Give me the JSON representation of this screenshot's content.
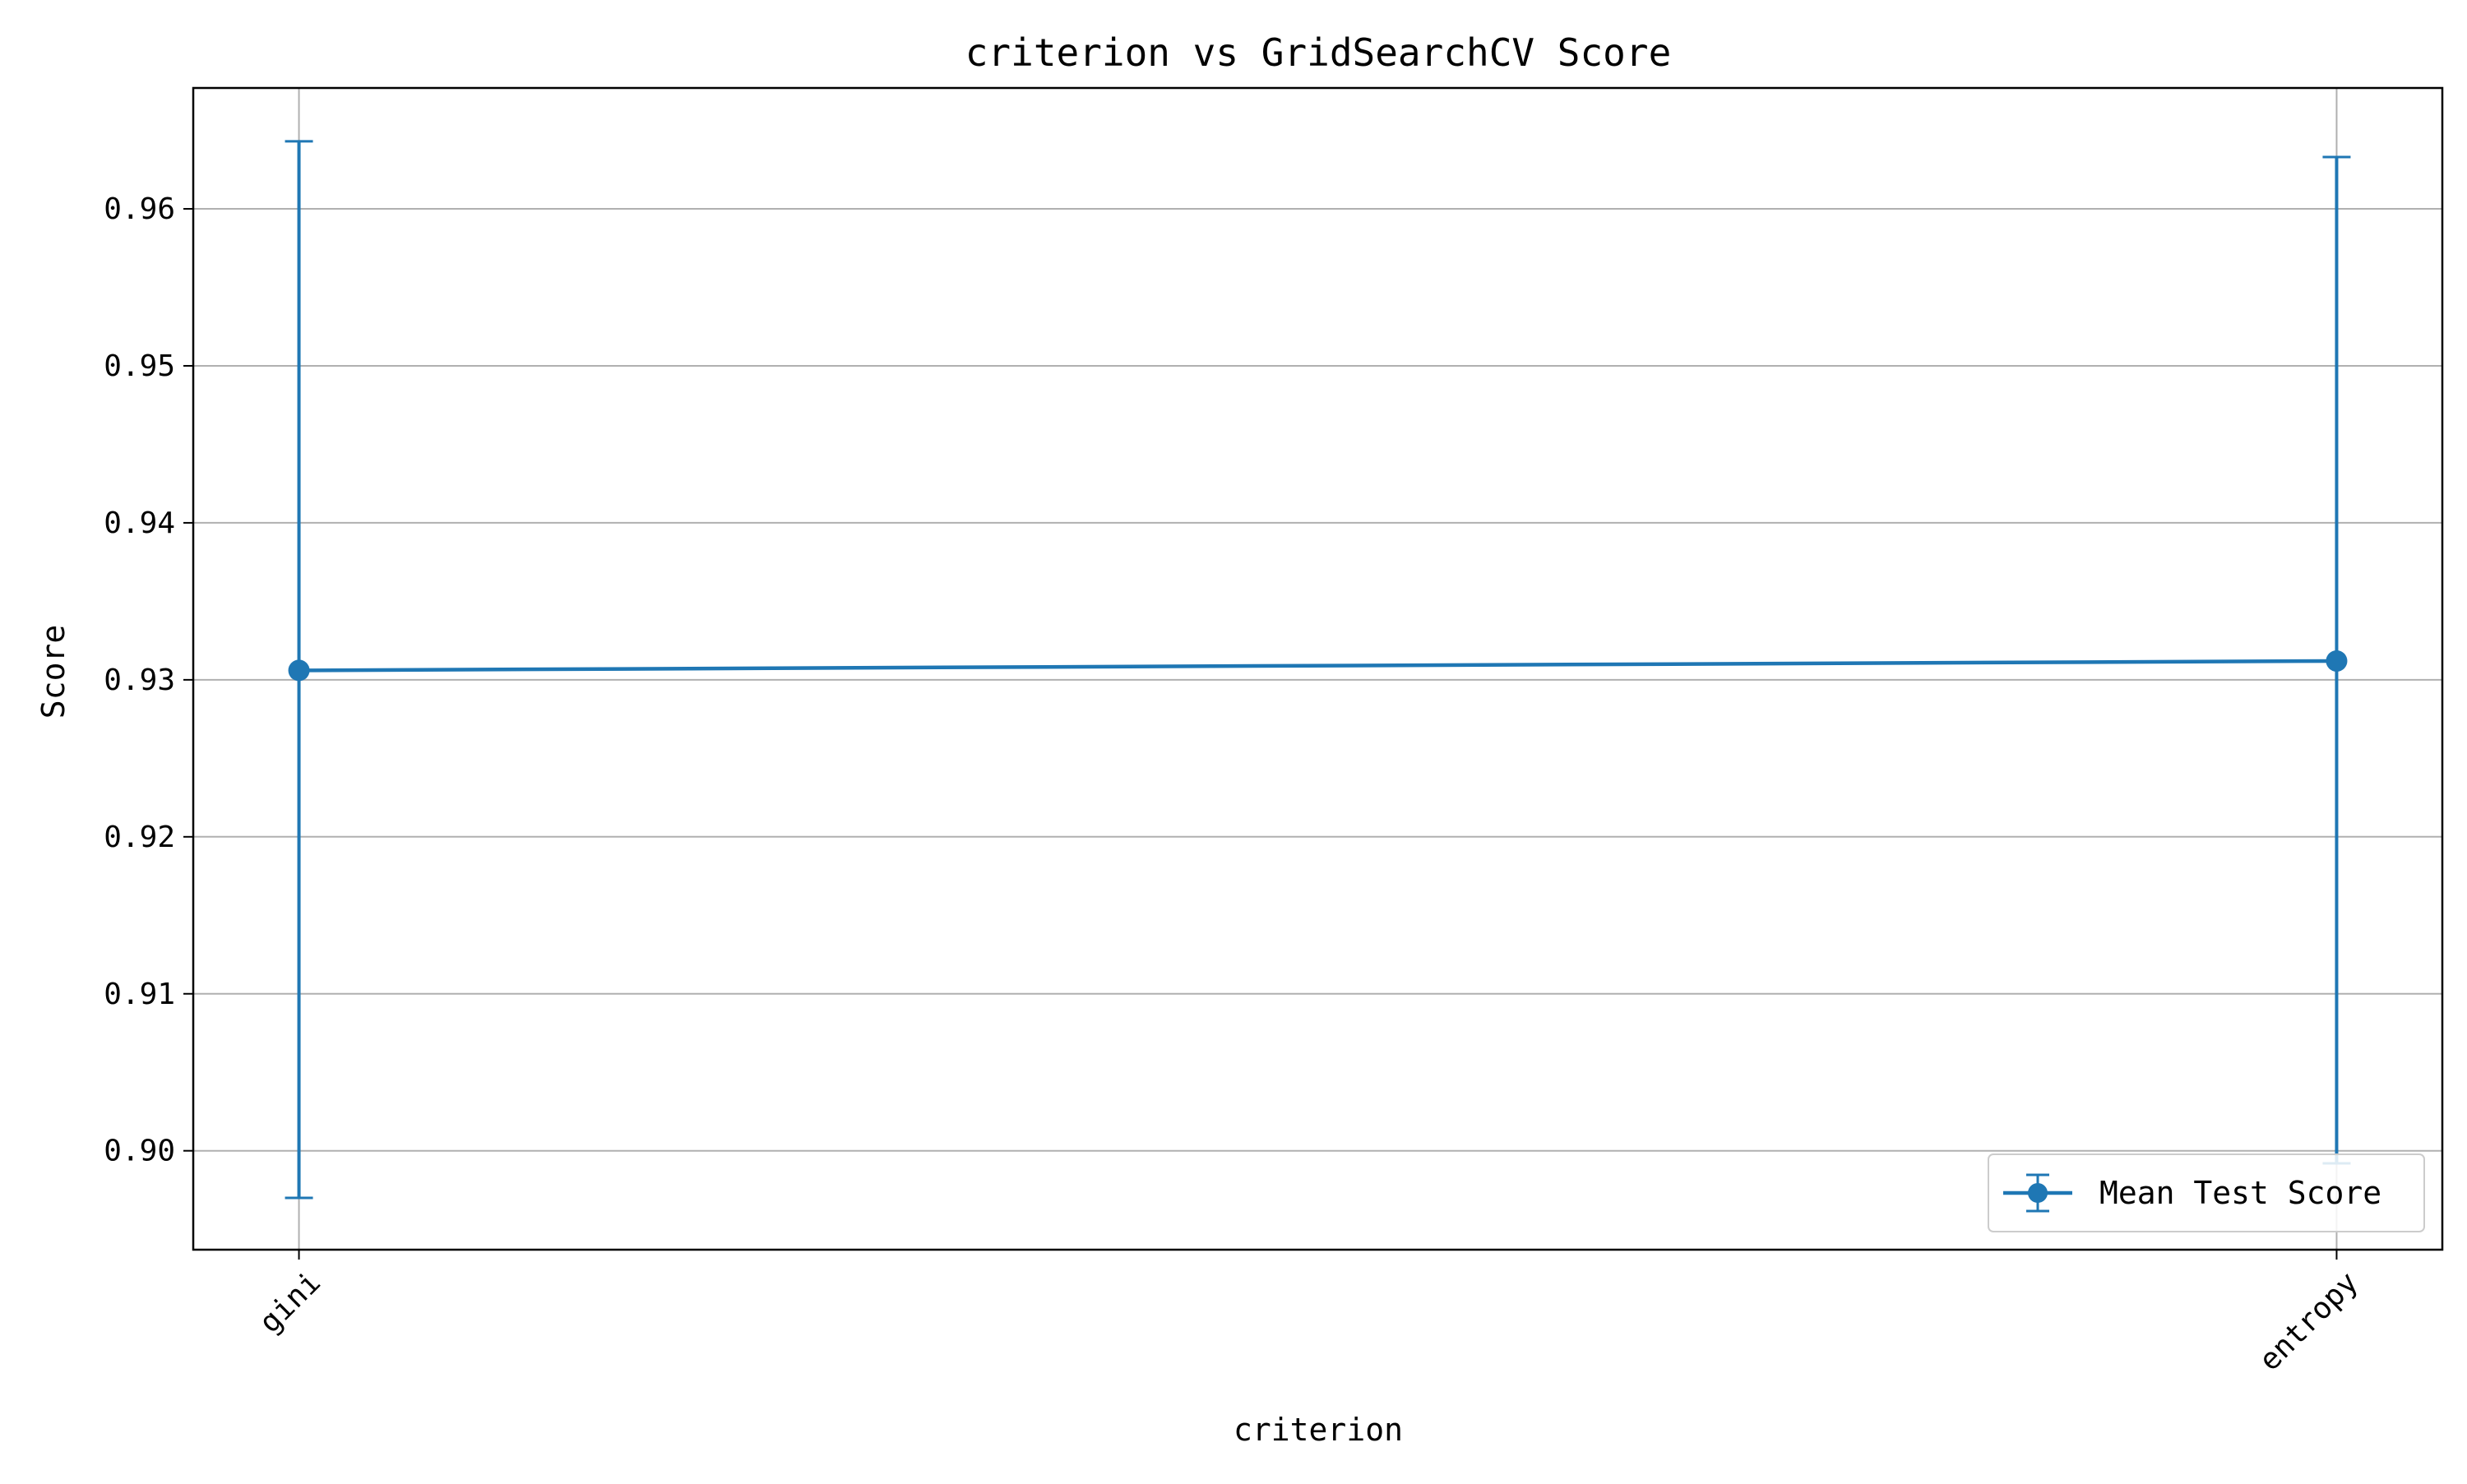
{
  "chart_data": {
    "type": "line",
    "title": "criterion vs GridSearchCV Score",
    "xlabel": "criterion",
    "ylabel": "Score",
    "categories": [
      "gini",
      "entropy"
    ],
    "series": [
      {
        "name": "Mean Test Score",
        "values": [
          0.9306,
          0.9312
        ],
        "error_low": [
          0.897,
          0.8992
        ],
        "error_high": [
          0.9643,
          0.9633
        ],
        "color": "#1f77b4",
        "marker": "circle"
      }
    ],
    "ylim": [
      0.8937,
      0.9677
    ],
    "y_ticks": [
      0.9,
      0.91,
      0.92,
      0.93,
      0.94,
      0.95,
      0.96
    ],
    "y_tick_labels": [
      "0.90",
      "0.91",
      "0.92",
      "0.93",
      "0.94",
      "0.95",
      "0.96"
    ],
    "x_tick_rotation": 45,
    "grid": true,
    "legend_position": "lower right",
    "colors": {
      "series": "#1f77b4",
      "grid": "#b0b0b0",
      "axes": "#000000",
      "background": "#ffffff"
    }
  }
}
